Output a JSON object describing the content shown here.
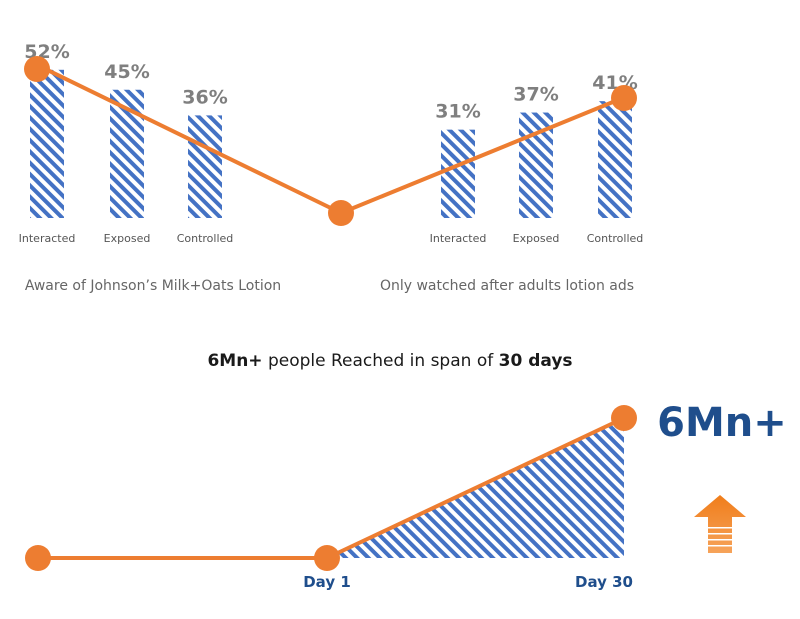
{
  "colors": {
    "bar_hatch": "#4472c4",
    "line": "#ed7d31",
    "marker": "#ed7d31",
    "label_gray": "#7f7f7f",
    "accent_blue": "#1f4e8c"
  },
  "chart_data": [
    {
      "type": "bar",
      "group_label": "Aware of Johnson’s Milk+Oats Lotion",
      "categories": [
        "Interacted",
        "Exposed",
        "Controlled"
      ],
      "values": [
        52,
        45,
        36
      ],
      "value_labels": [
        "52%",
        "45%",
        "36%"
      ],
      "unit": "%"
    },
    {
      "type": "bar",
      "group_label": "Only watched after adults lotion ads",
      "categories": [
        "Interacted",
        "Exposed",
        "Controlled"
      ],
      "values": [
        31,
        37,
        41
      ],
      "value_labels": [
        "31%",
        "37%",
        "41%"
      ],
      "unit": "%"
    },
    {
      "type": "area",
      "title_bold_1": "6Mn+",
      "title_mid": " people Reached in span of ",
      "title_bold_2": "30 days",
      "x": [
        "",
        "Day 1",
        "Day 30"
      ],
      "x_labels": [
        "Day 1",
        "Day 30"
      ],
      "values": [
        0,
        0,
        6
      ],
      "big_label": "6Mn+",
      "arrow_icon": "up-arrow-icon"
    }
  ]
}
